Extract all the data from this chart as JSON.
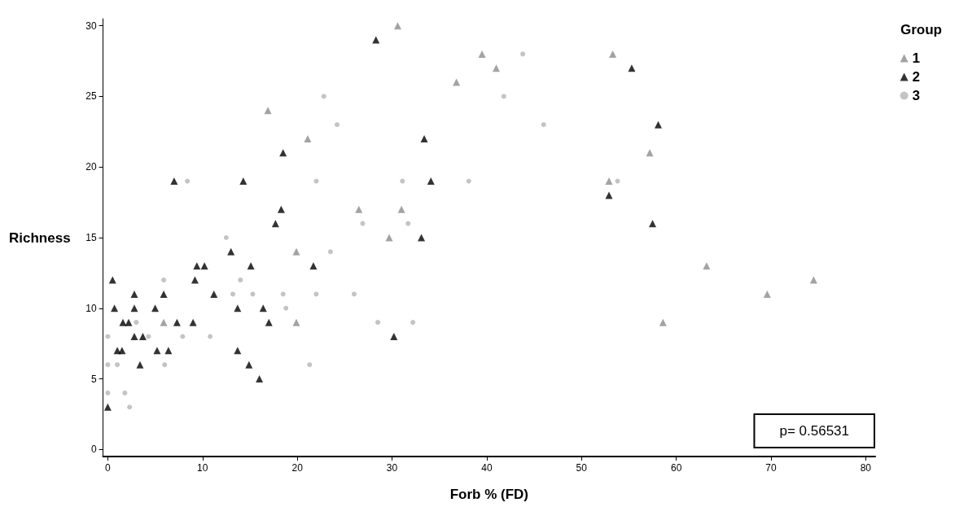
{
  "chart_data": {
    "type": "scatter",
    "xlabel": "Forb % (FD)",
    "ylabel": "Richness",
    "legend_title": "Group",
    "legend": "top right",
    "grid": false,
    "xlim": [
      -0.5,
      81
    ],
    "xticks": [
      0,
      10,
      20,
      30,
      40,
      50,
      60,
      70,
      80
    ],
    "ylim": [
      -0.5,
      30.5
    ],
    "yticks": [
      0,
      5,
      10,
      15,
      20,
      25,
      30
    ],
    "annotations": [
      "p= 0.56531"
    ],
    "series": [
      {
        "name": "1",
        "color": "#8c8c8c",
        "marker": "triangle",
        "x": [
          30.6,
          39.5,
          41,
          36.8,
          16.9,
          21.1,
          53.3,
          57.2,
          52.9,
          26.5,
          31,
          29.7,
          19.9,
          63.2,
          69.6,
          74.5,
          58.6,
          19.9,
          5.9
        ],
        "values": [
          30,
          28,
          27,
          26,
          24,
          22,
          28,
          21,
          19,
          17,
          17,
          15,
          14,
          13,
          11,
          12,
          9,
          9,
          9
        ]
      },
      {
        "name": "2",
        "color": "#000000",
        "marker": "triangle",
        "x": [
          28.3,
          55.3,
          58.1,
          33.4,
          34.1,
          52.9,
          57.5,
          33.1,
          18.5,
          7,
          14.3,
          18.3,
          17.7,
          13,
          9.4,
          10.2,
          15.1,
          21.7,
          0.5,
          9.2,
          2.8,
          5.9,
          11.2,
          0.7,
          2.8,
          5,
          13.7,
          16.4,
          1.6,
          2.2,
          7.3,
          9,
          17,
          2.8,
          3.7,
          1,
          1.5,
          5.2,
          6.4,
          13.7,
          3.4,
          14.9,
          16,
          0,
          30.2
        ],
        "values": [
          29,
          27,
          23,
          22,
          19,
          18,
          16,
          15,
          21,
          19,
          19,
          17,
          16,
          14,
          13,
          13,
          13,
          13,
          12,
          12,
          11,
          11,
          11,
          10,
          10,
          10,
          10,
          10,
          9,
          9,
          9,
          9,
          9,
          8,
          8,
          7,
          7,
          7,
          7,
          7,
          6,
          6,
          5,
          3,
          8
        ]
      },
      {
        "name": "3",
        "color": "#b5b5b5",
        "marker": "circle",
        "x": [
          43.8,
          41.8,
          46,
          22.8,
          24.2,
          22,
          8.4,
          31.1,
          38.1,
          26.9,
          31.7,
          12.5,
          23.5,
          53.8,
          5.9,
          13.2,
          15.3,
          18.5,
          18.8,
          22,
          26,
          28.5,
          32.2,
          21.3,
          0,
          0,
          0,
          1.8,
          2.3,
          3,
          4.3,
          7.9,
          10.8,
          1,
          6,
          14
        ],
        "values": [
          28,
          25,
          23,
          25,
          23,
          19,
          19,
          19,
          19,
          16,
          16,
          15,
          14,
          19,
          12,
          11,
          11,
          11,
          10,
          11,
          11,
          9,
          9,
          6,
          8,
          6,
          4,
          4,
          3,
          9,
          8,
          8,
          8,
          6,
          6,
          12
        ]
      }
    ]
  }
}
